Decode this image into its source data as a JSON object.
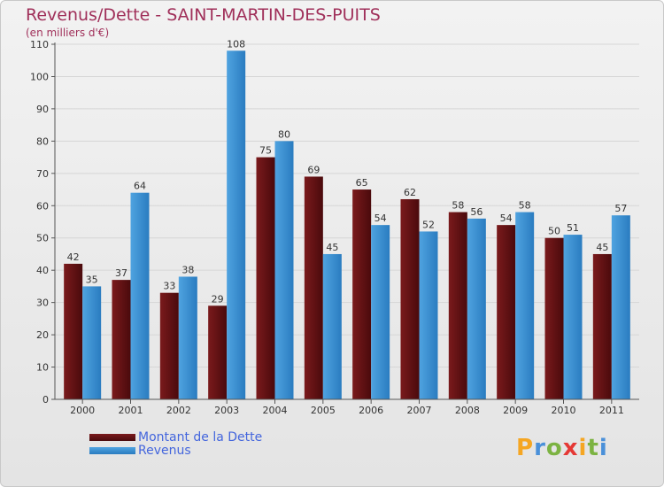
{
  "chart_data": {
    "type": "bar",
    "title": "Revenus/Dette - SAINT-MARTIN-DES-PUITS",
    "subtitle": "(en milliers d'€)",
    "categories": [
      "2000",
      "2001",
      "2002",
      "2003",
      "2004",
      "2005",
      "2006",
      "2007",
      "2008",
      "2009",
      "2010",
      "2011"
    ],
    "series": [
      {
        "name": "Montant de la Dette",
        "color": "#7a1a1c",
        "values": [
          42,
          37,
          33,
          29,
          75,
          69,
          65,
          62,
          58,
          54,
          50,
          45
        ]
      },
      {
        "name": "Revenus",
        "color": "#4fa3e0",
        "values": [
          35,
          64,
          38,
          108,
          80,
          45,
          54,
          52,
          56,
          58,
          51,
          57
        ]
      }
    ],
    "ylim": [
      0,
      110
    ],
    "yticks": [
      0,
      10,
      20,
      30,
      40,
      50,
      60,
      70,
      80,
      90,
      100,
      110
    ],
    "grid": true,
    "legend_position": "bottom-left"
  },
  "logo": {
    "letters": [
      "P",
      "r",
      "o",
      "x",
      "i",
      "t",
      "i"
    ],
    "colors": [
      "#f5a623",
      "#4a90d9",
      "#7cb342",
      "#e53935",
      "#f5a623",
      "#7cb342",
      "#4a90d9"
    ]
  }
}
